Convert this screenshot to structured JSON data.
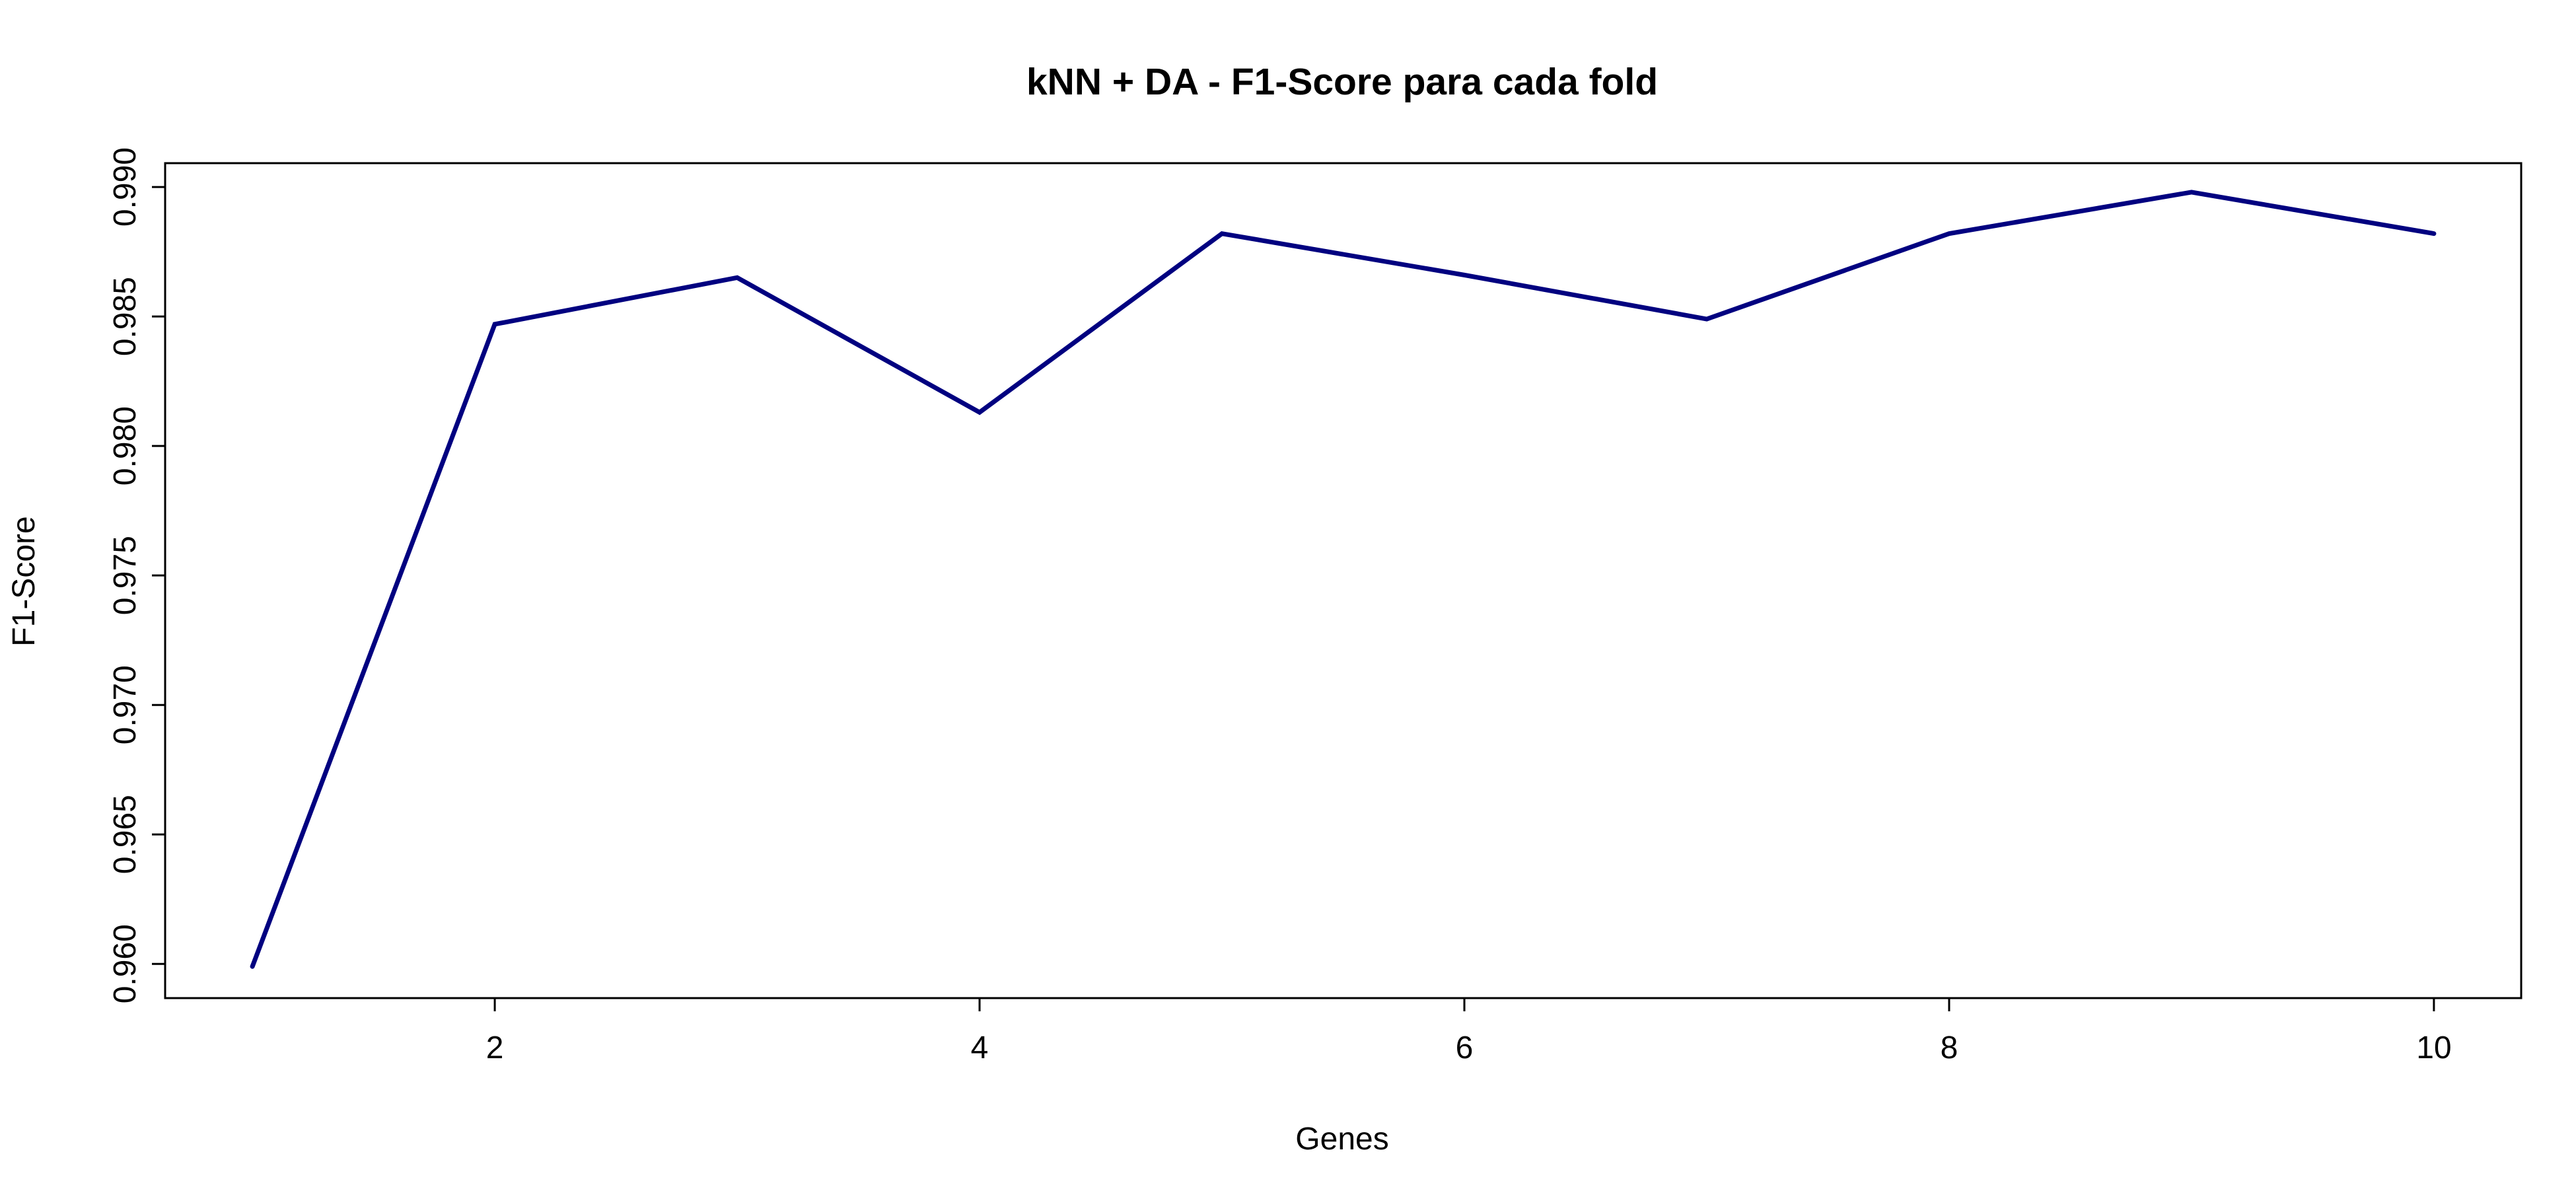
{
  "chart_data": {
    "type": "line",
    "title": "kNN + DA - F1-Score para cada fold",
    "xlabel": "Genes",
    "ylabel": "F1-Score",
    "x": [
      1,
      2,
      3,
      4,
      5,
      6,
      7,
      8,
      9,
      10
    ],
    "series": [
      {
        "values": [
          0.9599,
          0.9847,
          0.9865,
          0.9813,
          0.9882,
          0.9866,
          0.9849,
          0.9882,
          0.9898,
          0.9882
        ],
        "color": "#000080"
      }
    ],
    "xlim": [
      0.64,
      10.36
    ],
    "ylim": [
      0.95868,
      0.99092
    ],
    "xticks": [
      "2",
      "4",
      "6",
      "8",
      "10"
    ],
    "yticks": [
      "0.960",
      "0.965",
      "0.970",
      "0.975",
      "0.980",
      "0.985",
      "0.990"
    ],
    "grid": false,
    "legend": "none"
  }
}
